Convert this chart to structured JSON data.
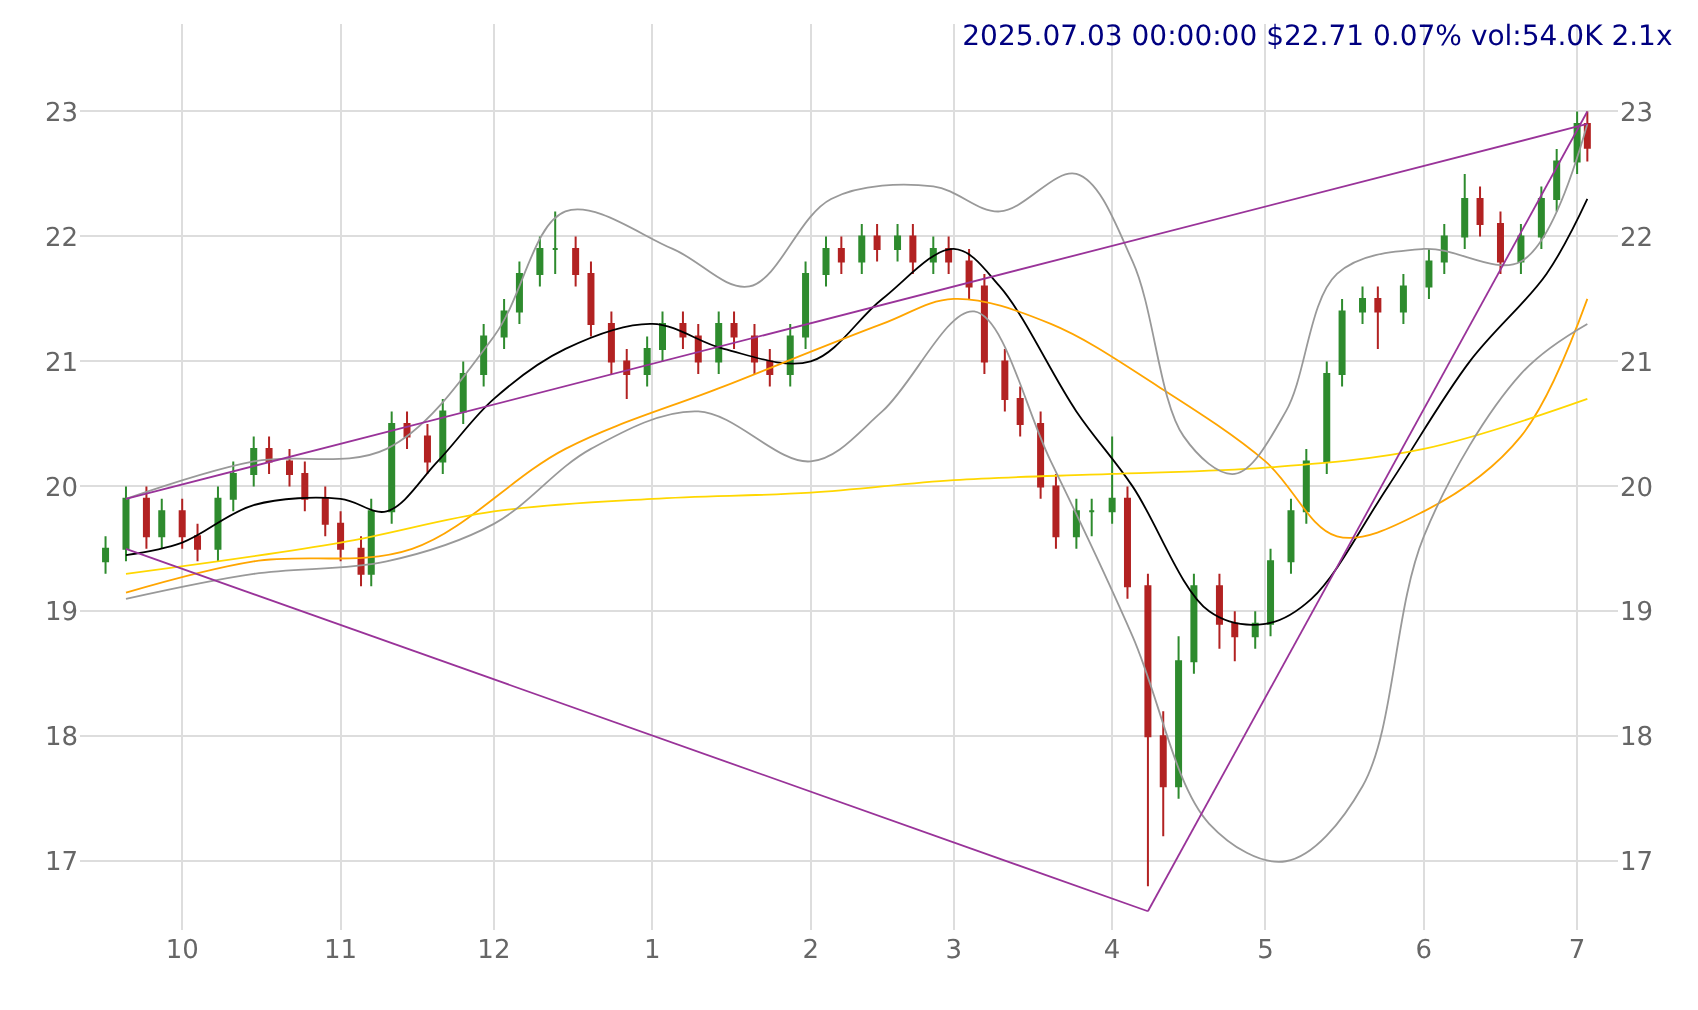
{
  "chart_data": {
    "type": "candlestick",
    "title": "2025.07.03 00:00:00 $22.71 0.07% vol:54.0K 2.1x",
    "x": [
      "2024-09-16",
      "2024-09-20",
      "2024-09-24",
      "2024-09-27",
      "2024-10-01",
      "2024-10-04",
      "2024-10-08",
      "2024-10-11",
      "2024-10-15",
      "2024-10-18",
      "2024-10-22",
      "2024-10-25",
      "2024-10-29",
      "2024-11-01",
      "2024-11-05",
      "2024-11-07",
      "2024-11-11",
      "2024-11-14",
      "2024-11-18",
      "2024-11-21",
      "2024-11-25",
      "2024-11-29",
      "2024-12-03",
      "2024-12-06",
      "2024-12-10",
      "2024-12-13",
      "2024-12-17",
      "2024-12-20",
      "2024-12-24",
      "2024-12-27",
      "2024-12-31",
      "2025-01-03",
      "2025-01-07",
      "2025-01-10",
      "2025-01-14",
      "2025-01-17",
      "2025-01-21",
      "2025-01-24",
      "2025-01-28",
      "2025-01-31",
      "2025-02-04",
      "2025-02-07",
      "2025-02-11",
      "2025-02-14",
      "2025-02-18",
      "2025-02-21",
      "2025-02-25",
      "2025-02-28",
      "2025-03-04",
      "2025-03-07",
      "2025-03-11",
      "2025-03-14",
      "2025-03-18",
      "2025-03-21",
      "2025-03-25",
      "2025-03-28",
      "2025-04-01",
      "2025-04-04",
      "2025-04-08",
      "2025-04-11",
      "2025-04-14",
      "2025-04-17",
      "2025-04-22",
      "2025-04-25",
      "2025-04-29",
      "2025-05-02",
      "2025-05-06",
      "2025-05-09",
      "2025-05-13",
      "2025-05-16",
      "2025-05-20",
      "2025-05-23",
      "2025-05-28",
      "2025-06-02",
      "2025-06-05",
      "2025-06-09",
      "2025-06-12",
      "2025-06-16",
      "2025-06-20",
      "2025-06-24",
      "2025-06-27",
      "2025-07-01",
      "2025-07-03"
    ],
    "ohlc": [
      [
        19.4,
        19.6,
        19.3,
        19.5
      ],
      [
        19.5,
        20.0,
        19.4,
        19.9
      ],
      [
        19.9,
        20.0,
        19.5,
        19.6
      ],
      [
        19.6,
        19.9,
        19.5,
        19.8
      ],
      [
        19.8,
        19.9,
        19.5,
        19.6
      ],
      [
        19.6,
        19.7,
        19.4,
        19.5
      ],
      [
        19.5,
        20.0,
        19.4,
        19.9
      ],
      [
        19.9,
        20.2,
        19.8,
        20.1
      ],
      [
        20.1,
        20.4,
        20.0,
        20.3
      ],
      [
        20.3,
        20.4,
        20.1,
        20.2
      ],
      [
        20.2,
        20.3,
        20.0,
        20.1
      ],
      [
        20.1,
        20.2,
        19.8,
        19.9
      ],
      [
        19.9,
        20.0,
        19.6,
        19.7
      ],
      [
        19.7,
        19.8,
        19.4,
        19.5
      ],
      [
        19.5,
        19.6,
        19.2,
        19.3
      ],
      [
        19.3,
        19.9,
        19.2,
        19.8
      ],
      [
        19.8,
        20.6,
        19.7,
        20.5
      ],
      [
        20.5,
        20.6,
        20.3,
        20.4
      ],
      [
        20.4,
        20.5,
        20.1,
        20.2
      ],
      [
        20.2,
        20.7,
        20.1,
        20.6
      ],
      [
        20.6,
        21.0,
        20.5,
        20.9
      ],
      [
        20.9,
        21.3,
        20.8,
        21.2
      ],
      [
        21.2,
        21.5,
        21.1,
        21.4
      ],
      [
        21.4,
        21.8,
        21.3,
        21.7
      ],
      [
        21.7,
        22.0,
        21.6,
        21.9
      ],
      [
        21.9,
        22.2,
        21.7,
        21.9
      ],
      [
        21.9,
        22.0,
        21.6,
        21.7
      ],
      [
        21.7,
        21.8,
        21.2,
        21.3
      ],
      [
        21.3,
        21.4,
        20.9,
        21.0
      ],
      [
        21.0,
        21.1,
        20.7,
        20.9
      ],
      [
        20.9,
        21.2,
        20.8,
        21.1
      ],
      [
        21.1,
        21.4,
        21.0,
        21.3
      ],
      [
        21.3,
        21.4,
        21.1,
        21.2
      ],
      [
        21.2,
        21.3,
        20.9,
        21.0
      ],
      [
        21.0,
        21.4,
        20.9,
        21.3
      ],
      [
        21.3,
        21.4,
        21.1,
        21.2
      ],
      [
        21.2,
        21.3,
        20.9,
        21.0
      ],
      [
        21.0,
        21.1,
        20.8,
        20.9
      ],
      [
        20.9,
        21.3,
        20.8,
        21.2
      ],
      [
        21.2,
        21.8,
        21.1,
        21.7
      ],
      [
        21.7,
        22.0,
        21.6,
        21.9
      ],
      [
        21.9,
        22.0,
        21.7,
        21.8
      ],
      [
        21.8,
        22.1,
        21.7,
        22.0
      ],
      [
        22.0,
        22.1,
        21.8,
        21.9
      ],
      [
        21.9,
        22.1,
        21.8,
        22.0
      ],
      [
        22.0,
        22.1,
        21.7,
        21.8
      ],
      [
        21.8,
        22.0,
        21.7,
        21.9
      ],
      [
        21.9,
        22.0,
        21.7,
        21.8
      ],
      [
        21.8,
        21.9,
        21.5,
        21.6
      ],
      [
        21.6,
        21.7,
        20.9,
        21.0
      ],
      [
        21.0,
        21.1,
        20.6,
        20.7
      ],
      [
        20.7,
        20.8,
        20.4,
        20.5
      ],
      [
        20.5,
        20.6,
        19.9,
        20.0
      ],
      [
        20.0,
        20.1,
        19.5,
        19.6
      ],
      [
        19.6,
        19.9,
        19.5,
        19.8
      ],
      [
        19.8,
        19.9,
        19.6,
        19.8
      ],
      [
        19.8,
        20.4,
        19.7,
        19.9
      ],
      [
        19.9,
        20.0,
        19.1,
        19.2
      ],
      [
        19.2,
        19.3,
        16.8,
        18.0
      ],
      [
        18.0,
        18.2,
        17.2,
        17.6
      ],
      [
        17.6,
        18.8,
        17.5,
        18.6
      ],
      [
        18.6,
        19.3,
        18.5,
        19.2
      ],
      [
        19.2,
        19.3,
        18.7,
        18.9
      ],
      [
        18.9,
        19.0,
        18.6,
        18.8
      ],
      [
        18.8,
        19.0,
        18.7,
        18.9
      ],
      [
        18.9,
        19.5,
        18.8,
        19.4
      ],
      [
        19.4,
        19.9,
        19.3,
        19.8
      ],
      [
        19.8,
        20.3,
        19.7,
        20.2
      ],
      [
        20.2,
        21.0,
        20.1,
        20.9
      ],
      [
        20.9,
        21.5,
        20.8,
        21.4
      ],
      [
        21.4,
        21.6,
        21.3,
        21.5
      ],
      [
        21.5,
        21.6,
        21.1,
        21.4
      ],
      [
        21.4,
        21.7,
        21.3,
        21.6
      ],
      [
        21.6,
        21.9,
        21.5,
        21.8
      ],
      [
        21.8,
        22.1,
        21.7,
        22.0
      ],
      [
        22.0,
        22.5,
        21.9,
        22.3
      ],
      [
        22.3,
        22.4,
        22.0,
        22.1
      ],
      [
        22.1,
        22.2,
        21.7,
        21.8
      ],
      [
        21.8,
        22.1,
        21.7,
        22.0
      ],
      [
        22.0,
        22.4,
        21.9,
        22.3
      ],
      [
        22.3,
        22.7,
        22.2,
        22.6
      ],
      [
        22.6,
        23.0,
        22.5,
        22.9
      ],
      [
        22.9,
        23.0,
        22.6,
        22.71
      ]
    ],
    "series": [
      {
        "type": "line",
        "color": "#000000",
        "x": [
          "2024-09-20",
          "2024-10-01",
          "2024-10-15",
          "2024-11-01",
          "2024-11-10",
          "2024-11-20",
          "2024-12-01",
          "2024-12-15",
          "2025-01-01",
          "2025-01-15",
          "2025-02-01",
          "2025-02-15",
          "2025-03-01",
          "2025-03-10",
          "2025-03-25",
          "2025-04-05",
          "2025-04-20",
          "2025-05-01",
          "2025-05-10",
          "2025-05-25",
          "2025-06-10",
          "2025-06-25",
          "2025-07-03"
        ],
        "values": [
          19.45,
          19.55,
          19.85,
          19.9,
          19.8,
          20.2,
          20.7,
          21.1,
          21.3,
          21.1,
          21.0,
          21.5,
          21.9,
          21.6,
          20.6,
          20.0,
          19.0,
          18.9,
          19.1,
          20.0,
          21.0,
          21.7,
          22.3
        ]
      },
      {
        "type": "line",
        "color": "#ffa500",
        "x": [
          "2024-09-20",
          "2024-10-15",
          "2024-11-15",
          "2024-12-15",
          "2025-01-15",
          "2025-02-15",
          "2025-03-01",
          "2025-03-20",
          "2025-04-10",
          "2025-05-01",
          "2025-05-15",
          "2025-06-01",
          "2025-06-20",
          "2025-07-03"
        ],
        "values": [
          19.15,
          19.4,
          19.5,
          20.3,
          20.8,
          21.3,
          21.5,
          21.3,
          20.8,
          20.2,
          19.6,
          19.8,
          20.4,
          21.5
        ]
      },
      {
        "type": "line",
        "color": "#ffd700",
        "x": [
          "2024-09-20",
          "2024-11-01",
          "2024-12-01",
          "2025-01-01",
          "2025-02-01",
          "2025-03-01",
          "2025-04-01",
          "2025-05-01",
          "2025-06-01",
          "2025-07-03"
        ],
        "values": [
          19.3,
          19.55,
          19.8,
          19.9,
          19.95,
          20.05,
          20.1,
          20.15,
          20.3,
          20.7
        ]
      },
      {
        "type": "line",
        "color": "#999999",
        "x": [
          "2024-09-20",
          "2024-10-15",
          "2024-11-10",
          "2024-12-01",
          "2024-12-15",
          "2025-01-05",
          "2025-01-20",
          "2025-02-05",
          "2025-02-25",
          "2025-03-10",
          "2025-03-25",
          "2025-04-05",
          "2025-04-15",
          "2025-04-25",
          "2025-05-05",
          "2025-05-15",
          "2025-06-01",
          "2025-06-20",
          "2025-07-03"
        ],
        "values": [
          19.9,
          20.2,
          20.3,
          21.2,
          22.2,
          21.9,
          21.6,
          22.3,
          22.4,
          22.2,
          22.5,
          21.8,
          20.4,
          20.1,
          20.6,
          21.7,
          21.9,
          21.8,
          22.9
        ]
      },
      {
        "type": "line",
        "color": "#999999",
        "x": [
          "2024-09-20",
          "2024-10-15",
          "2024-11-10",
          "2024-12-01",
          "2024-12-20",
          "2025-01-10",
          "2025-02-01",
          "2025-02-15",
          "2025-03-05",
          "2025-03-20",
          "2025-04-05",
          "2025-04-20",
          "2025-05-05",
          "2025-05-20",
          "2025-06-01",
          "2025-06-20",
          "2025-07-03"
        ],
        "values": [
          19.1,
          19.3,
          19.4,
          19.7,
          20.3,
          20.6,
          20.2,
          20.6,
          21.4,
          20.2,
          18.8,
          17.3,
          17.0,
          17.6,
          19.6,
          20.9,
          21.3
        ]
      },
      {
        "type": "line",
        "color": "#993399",
        "x": [
          "2024-09-20",
          "2025-07-03"
        ],
        "values": [
          19.9,
          22.9
        ]
      },
      {
        "type": "line",
        "color": "#993399",
        "x": [
          "2024-09-20",
          "2025-04-08"
        ],
        "values": [
          19.5,
          16.6
        ]
      },
      {
        "type": "line",
        "color": "#993399",
        "x": [
          "2025-04-08",
          "2025-07-03"
        ],
        "values": [
          16.6,
          23.0
        ]
      }
    ],
    "xlim": [
      "2024-09-11",
      "2025-07-09"
    ],
    "xticks": [
      {
        "value": "2024-10-01",
        "label": "10"
      },
      {
        "value": "2024-11-01",
        "label": "11"
      },
      {
        "value": "2024-12-01",
        "label": "12"
      },
      {
        "value": "2025-01-01",
        "label": "1"
      },
      {
        "value": "2025-02-01",
        "label": "2"
      },
      {
        "value": "2025-03-01",
        "label": "3"
      },
      {
        "value": "2025-04-01",
        "label": "4"
      },
      {
        "value": "2025-05-01",
        "label": "5"
      },
      {
        "value": "2025-06-01",
        "label": "6"
      },
      {
        "value": "2025-07-01",
        "label": "7"
      }
    ],
    "ylim": [
      16.45,
      23.7
    ],
    "yticks": [
      17,
      18,
      19,
      20,
      21,
      22,
      23
    ],
    "y2lim": [
      16.45,
      23.7
    ],
    "y2ticks": [
      17,
      18,
      19,
      20,
      21,
      22,
      23
    ],
    "grid": true,
    "legend": false
  }
}
